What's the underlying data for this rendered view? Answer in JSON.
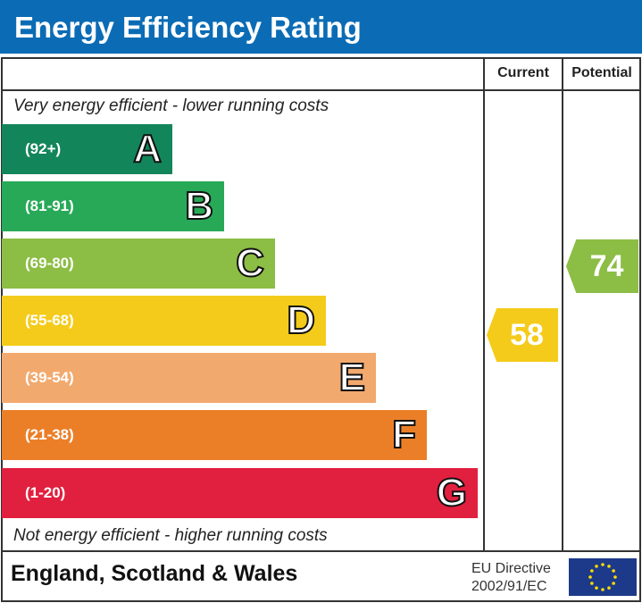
{
  "title": "Energy Efficiency Rating",
  "colors": {
    "header": "#0b6cb5",
    "A": "#13855a",
    "B": "#27a957",
    "C": "#8cbd45",
    "D": "#f4cb1a",
    "E": "#f2a96e",
    "F": "#eb7f28",
    "G": "#e11f3e"
  },
  "chart_data": {
    "type": "bar",
    "columns": [
      "Current",
      "Potential"
    ],
    "top_note": "Very energy efficient - lower running costs",
    "bottom_note": "Not energy efficient - higher running costs",
    "bands": [
      {
        "letter": "A",
        "range": "(92+)"
      },
      {
        "letter": "B",
        "range": "(81-91)"
      },
      {
        "letter": "C",
        "range": "(69-80)"
      },
      {
        "letter": "D",
        "range": "(55-68)"
      },
      {
        "letter": "E",
        "range": "(39-54)"
      },
      {
        "letter": "F",
        "range": "(21-38)"
      },
      {
        "letter": "G",
        "range": "(1-20)"
      }
    ],
    "current": {
      "value": "58",
      "band": "D"
    },
    "potential": {
      "value": "74",
      "band": "C"
    }
  },
  "footer": {
    "country": "England, Scotland & Wales",
    "directive_line1": "EU Directive",
    "directive_line2": "2002/91/EC"
  }
}
